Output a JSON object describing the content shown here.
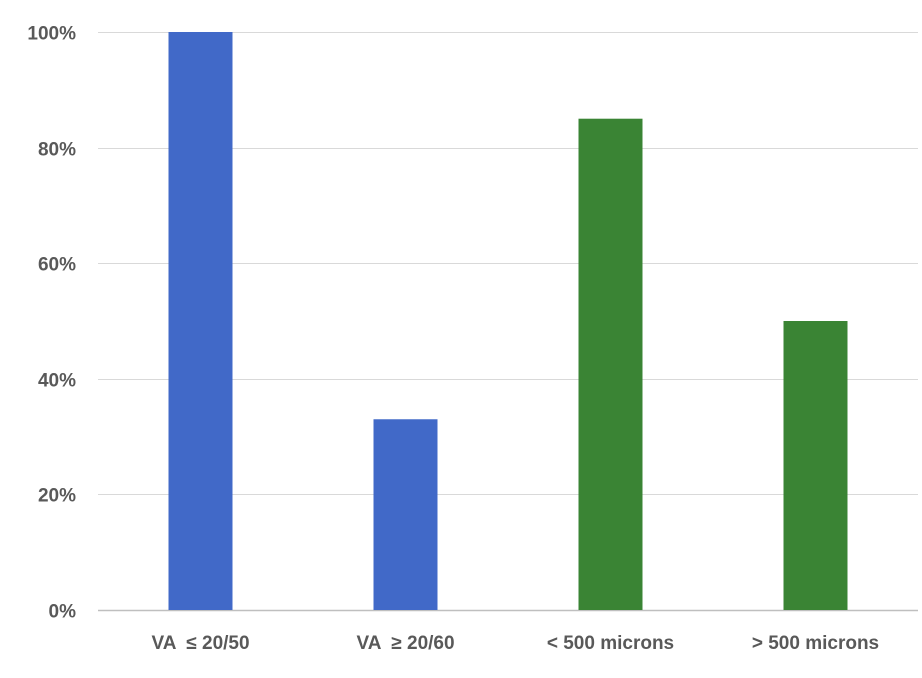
{
  "chart_data": {
    "type": "bar",
    "title": "",
    "xlabel": "",
    "ylabel": "",
    "ylim": [
      0,
      100
    ],
    "y_ticks": [
      "0%",
      "20%",
      "40%",
      "60%",
      "80%",
      "100%"
    ],
    "y_tick_values": [
      0,
      20,
      40,
      60,
      80,
      100
    ],
    "grid": true,
    "legend": "none",
    "categories": [
      "VA  ≤ 20/50",
      "VA  ≥ 20/60",
      "< 500 microns",
      "> 500 microns"
    ],
    "values": [
      100,
      33,
      85,
      50
    ],
    "bar_colors": [
      "#4169c8",
      "#4169c8",
      "#3a8434",
      "#3a8434"
    ],
    "gridline_color": "#d9d9d9",
    "axis_line_color": "#bfbfbf"
  }
}
